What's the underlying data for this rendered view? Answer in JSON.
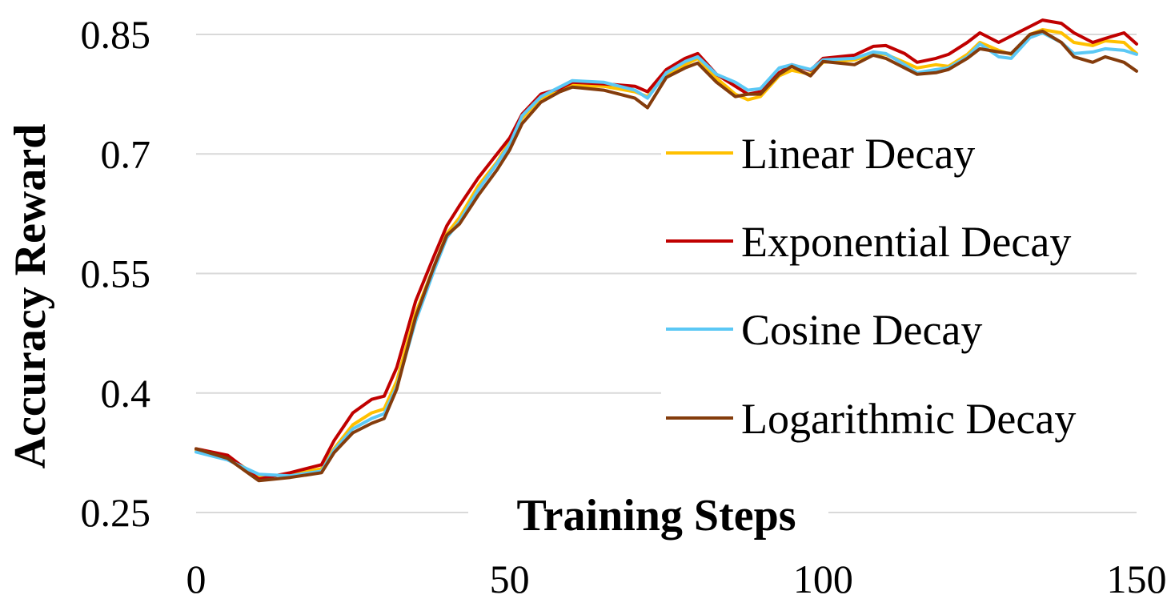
{
  "chart_data": {
    "type": "line",
    "title": "",
    "xlabel": "Training Steps",
    "ylabel": "Accuracy Reward",
    "xlim": [
      0,
      150
    ],
    "ylim": [
      0.25,
      0.85
    ],
    "x_ticks": [
      "0",
      "50",
      "100",
      "150"
    ],
    "y_ticks": [
      "0.25",
      "0.4",
      "0.55",
      "0.7",
      "0.85"
    ],
    "grid": "horizontal",
    "legend_position": "right",
    "series": [
      {
        "name": "Linear Decay",
        "color": "#FFC000",
        "x": [
          0,
          5,
          10,
          15,
          20,
          22,
          25,
          28,
          30,
          32,
          35,
          38,
          40,
          42,
          45,
          48,
          50,
          52,
          55,
          58,
          60,
          65,
          70,
          72,
          75,
          78,
          80,
          83,
          86,
          88,
          90,
          93,
          95,
          98,
          100,
          105,
          108,
          110,
          113,
          115,
          118,
          120,
          123,
          125,
          128,
          130,
          133,
          135,
          138,
          140,
          143,
          145,
          148,
          150
        ],
        "y": [
          0.328,
          0.32,
          0.295,
          0.298,
          0.305,
          0.33,
          0.36,
          0.375,
          0.38,
          0.415,
          0.5,
          0.56,
          0.6,
          0.62,
          0.66,
          0.69,
          0.715,
          0.745,
          0.77,
          0.78,
          0.786,
          0.785,
          0.778,
          0.772,
          0.8,
          0.812,
          0.82,
          0.795,
          0.775,
          0.768,
          0.772,
          0.798,
          0.805,
          0.8,
          0.815,
          0.818,
          0.826,
          0.825,
          0.815,
          0.808,
          0.812,
          0.81,
          0.825,
          0.84,
          0.83,
          0.825,
          0.85,
          0.856,
          0.852,
          0.84,
          0.836,
          0.842,
          0.84,
          0.826
        ]
      },
      {
        "name": "Exponential Decay",
        "color": "#C00000",
        "x": [
          0,
          5,
          10,
          15,
          20,
          22,
          25,
          28,
          30,
          32,
          35,
          38,
          40,
          42,
          45,
          48,
          50,
          52,
          55,
          58,
          60,
          65,
          70,
          72,
          75,
          78,
          80,
          83,
          86,
          88,
          90,
          93,
          95,
          98,
          100,
          105,
          108,
          110,
          113,
          115,
          118,
          120,
          123,
          125,
          128,
          130,
          133,
          135,
          138,
          140,
          143,
          145,
          148,
          150
        ],
        "y": [
          0.33,
          0.322,
          0.292,
          0.3,
          0.31,
          0.34,
          0.375,
          0.392,
          0.396,
          0.432,
          0.515,
          0.573,
          0.61,
          0.635,
          0.67,
          0.7,
          0.72,
          0.75,
          0.775,
          0.782,
          0.79,
          0.788,
          0.785,
          0.778,
          0.806,
          0.82,
          0.826,
          0.8,
          0.785,
          0.775,
          0.778,
          0.802,
          0.812,
          0.805,
          0.82,
          0.824,
          0.835,
          0.836,
          0.826,
          0.815,
          0.82,
          0.825,
          0.84,
          0.852,
          0.84,
          0.848,
          0.86,
          0.868,
          0.864,
          0.852,
          0.84,
          0.845,
          0.852,
          0.838
        ]
      },
      {
        "name": "Cosine Decay",
        "color": "#5BC8F5",
        "x": [
          0,
          5,
          10,
          15,
          20,
          22,
          25,
          28,
          30,
          32,
          35,
          38,
          40,
          42,
          45,
          48,
          50,
          52,
          55,
          58,
          60,
          65,
          70,
          72,
          75,
          78,
          80,
          83,
          86,
          88,
          90,
          93,
          95,
          98,
          100,
          105,
          108,
          110,
          113,
          115,
          118,
          120,
          123,
          125,
          128,
          130,
          133,
          135,
          138,
          140,
          143,
          145,
          148,
          150
        ],
        "y": [
          0.326,
          0.316,
          0.298,
          0.296,
          0.302,
          0.328,
          0.355,
          0.368,
          0.374,
          0.408,
          0.49,
          0.555,
          0.595,
          0.615,
          0.655,
          0.688,
          0.712,
          0.748,
          0.772,
          0.784,
          0.792,
          0.79,
          0.78,
          0.77,
          0.802,
          0.816,
          0.822,
          0.8,
          0.79,
          0.78,
          0.782,
          0.808,
          0.812,
          0.806,
          0.818,
          0.82,
          0.828,
          0.826,
          0.812,
          0.802,
          0.806,
          0.808,
          0.822,
          0.838,
          0.822,
          0.82,
          0.846,
          0.852,
          0.84,
          0.826,
          0.828,
          0.832,
          0.83,
          0.825
        ]
      },
      {
        "name": "Logarithmic Decay",
        "color": "#843C0C",
        "x": [
          0,
          5,
          10,
          15,
          20,
          22,
          25,
          28,
          30,
          32,
          35,
          38,
          40,
          42,
          45,
          48,
          50,
          52,
          55,
          58,
          60,
          65,
          70,
          72,
          75,
          78,
          80,
          83,
          86,
          88,
          90,
          93,
          95,
          98,
          100,
          105,
          108,
          110,
          113,
          115,
          118,
          120,
          123,
          125,
          128,
          130,
          133,
          135,
          138,
          140,
          143,
          145,
          148,
          150
        ],
        "y": [
          0.33,
          0.318,
          0.29,
          0.294,
          0.3,
          0.325,
          0.35,
          0.362,
          0.368,
          0.405,
          0.495,
          0.56,
          0.598,
          0.612,
          0.648,
          0.68,
          0.705,
          0.738,
          0.765,
          0.778,
          0.784,
          0.78,
          0.77,
          0.758,
          0.796,
          0.808,
          0.814,
          0.79,
          0.772,
          0.775,
          0.775,
          0.8,
          0.81,
          0.798,
          0.816,
          0.812,
          0.824,
          0.82,
          0.808,
          0.8,
          0.802,
          0.806,
          0.82,
          0.832,
          0.828,
          0.826,
          0.85,
          0.854,
          0.84,
          0.822,
          0.815,
          0.822,
          0.815,
          0.804
        ]
      }
    ]
  }
}
